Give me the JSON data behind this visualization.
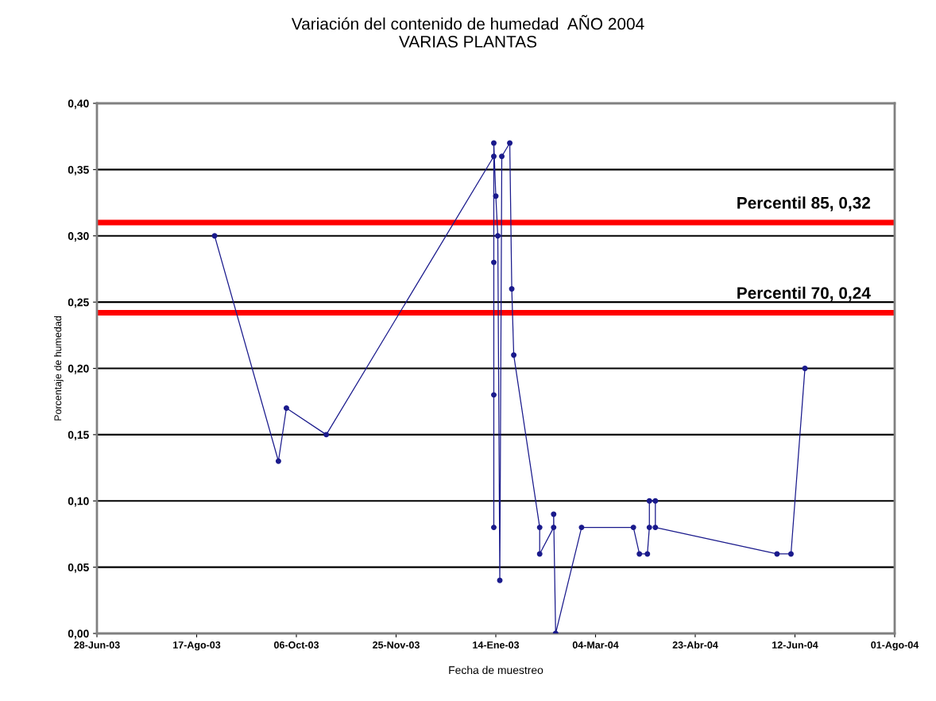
{
  "chart_data": {
    "type": "line",
    "title": "Variación del contenido de humedad  AÑO 2004\nVARIAS PLANTAS",
    "xlabel": "Fecha de muestreo",
    "ylabel": "Porcentaje de humedad",
    "series": [
      {
        "color": "#1a1a8c",
        "x": [
          "2003-08-26",
          "2003-09-27",
          "2003-10-01",
          "2003-10-21",
          "2004-01-13",
          "2004-01-13",
          "2004-01-13",
          "2004-01-13",
          "2004-01-13",
          "2004-01-14",
          "2004-01-15",
          "2004-01-16",
          "2004-01-17",
          "2004-01-21",
          "2004-01-22",
          "2004-01-23",
          "2004-02-05",
          "2004-02-05",
          "2004-02-12",
          "2004-02-12",
          "2004-02-13",
          "2004-02-26",
          "2004-03-23",
          "2004-03-26",
          "2004-03-30",
          "2004-03-31",
          "2004-03-31",
          "2004-04-03",
          "2004-04-03",
          "2004-06-03",
          "2004-06-10",
          "2004-06-17"
        ],
        "values": [
          0.3,
          0.13,
          0.17,
          0.15,
          0.36,
          0.28,
          0.18,
          0.08,
          0.37,
          0.33,
          0.3,
          0.04,
          0.36,
          0.37,
          0.26,
          0.21,
          0.08,
          0.06,
          0.08,
          0.09,
          0.0,
          0.08,
          0.08,
          0.06,
          0.06,
          0.08,
          0.1,
          0.1,
          0.08,
          0.06,
          0.06,
          0.2
        ]
      }
    ],
    "marker": "circle",
    "line_style": "solid",
    "xlim": [
      "2003-06-28",
      "2004-08-01"
    ],
    "xticks": [
      {
        "value": "2003-06-28",
        "label": "28-Jun-03"
      },
      {
        "value": "2003-08-17",
        "label": "17-Ago-03"
      },
      {
        "value": "2003-10-06",
        "label": "06-Oct-03"
      },
      {
        "value": "2003-11-25",
        "label": "25-Nov-03"
      },
      {
        "value": "2004-01-14",
        "label": "14-Ene-03"
      },
      {
        "value": "2004-03-04",
        "label": "04-Mar-04"
      },
      {
        "value": "2004-04-23",
        "label": "23-Abr-04"
      },
      {
        "value": "2004-06-12",
        "label": "12-Jun-04"
      },
      {
        "value": "2004-08-01",
        "label": "01-Ago-04"
      }
    ],
    "ylim": [
      0,
      0.4
    ],
    "yticks": [
      {
        "value": 0,
        "label": "0,00"
      },
      {
        "value": 0.05,
        "label": "0,05"
      },
      {
        "value": 0.1,
        "label": "0,10"
      },
      {
        "value": 0.15,
        "label": "0,15"
      },
      {
        "value": 0.2,
        "label": "0,20"
      },
      {
        "value": 0.25,
        "label": "0,25"
      },
      {
        "value": 0.3,
        "label": "0,30"
      },
      {
        "value": 0.35,
        "label": "0,35"
      },
      {
        "value": 0.4,
        "label": "0,40"
      }
    ],
    "grid": "y",
    "ref_lines": [
      {
        "axis": "y",
        "value": 0.31,
        "label": "Percentil 85, 0,32",
        "color": "#ff0000"
      },
      {
        "axis": "y",
        "value": 0.242,
        "label": "Percentil 70, 0,24",
        "color": "#ff0000"
      }
    ]
  }
}
